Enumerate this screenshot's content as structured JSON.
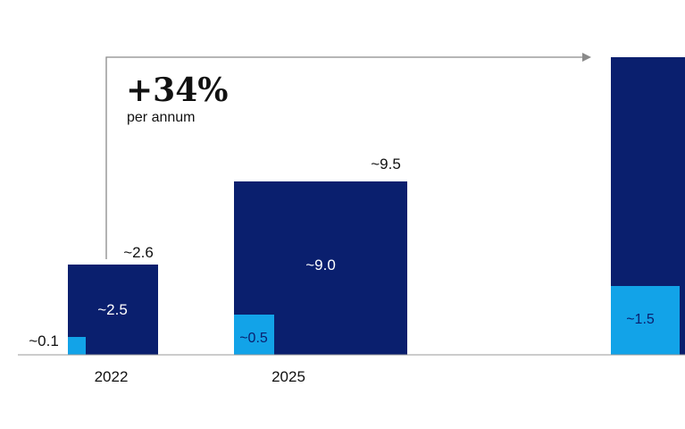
{
  "chart_data": {
    "type": "bar",
    "stacked": true,
    "categories": [
      "2022",
      "2025",
      ""
    ],
    "series": [
      {
        "values": [
          0.1,
          0.5,
          1.5
        ],
        "color": "#12a3e8"
      },
      {
        "values": [
          2.5,
          9.0,
          null
        ],
        "color": "#0a1f6e"
      }
    ],
    "segment_labels": {
      "light": [
        "~0.1",
        "~0.5",
        "~1.5"
      ],
      "dark": [
        "~2.5",
        "~9.0",
        ""
      ]
    },
    "total_labels": [
      "~2.6",
      "~9.5",
      ""
    ],
    "ylim": [
      0,
      9.5
    ],
    "grid": false,
    "annotation": {
      "value": "+34%",
      "subtitle": "per annum"
    }
  }
}
